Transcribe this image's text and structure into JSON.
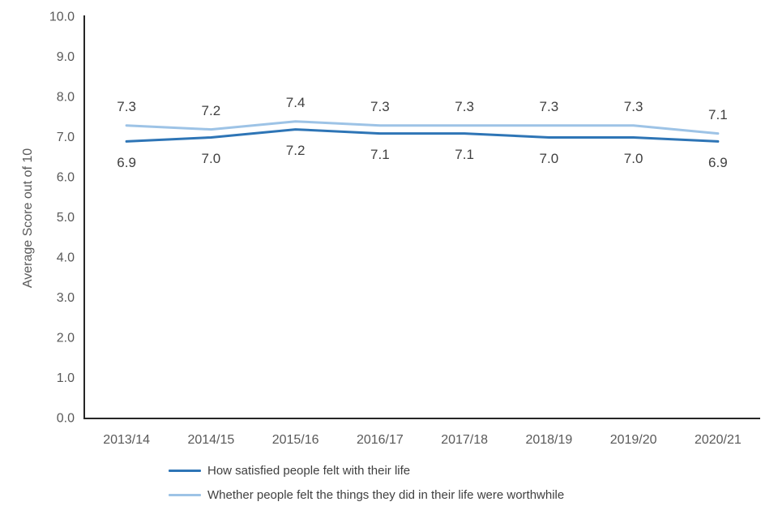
{
  "chart_data": {
    "type": "line",
    "ylabel": "Average Score out of 10",
    "categories": [
      "2013/14",
      "2014/15",
      "2015/16",
      "2016/17",
      "2017/18",
      "2018/19",
      "2019/20",
      "2020/21"
    ],
    "series": [
      {
        "name": "How satisfied people felt with their life",
        "color": "#2E75B6",
        "values": [
          6.9,
          7.0,
          7.2,
          7.1,
          7.1,
          7.0,
          7.0,
          6.9
        ],
        "label_position": "below"
      },
      {
        "name": "Whether people felt the things they did in their life were worthwhile",
        "color": "#9DC3E6",
        "values": [
          7.3,
          7.2,
          7.4,
          7.3,
          7.3,
          7.3,
          7.3,
          7.1
        ],
        "label_position": "above"
      }
    ],
    "ylim": [
      0,
      10
    ],
    "ytick_step": 1,
    "ytick_format_decimals": 1,
    "grid": false,
    "data_labels": true,
    "legend_position": "bottom-left"
  },
  "colors": {
    "axis_line": "#262626",
    "tick_text": "#595959",
    "data_label_text": "#404040",
    "legend_text": "#404040",
    "background": "#ffffff"
  }
}
